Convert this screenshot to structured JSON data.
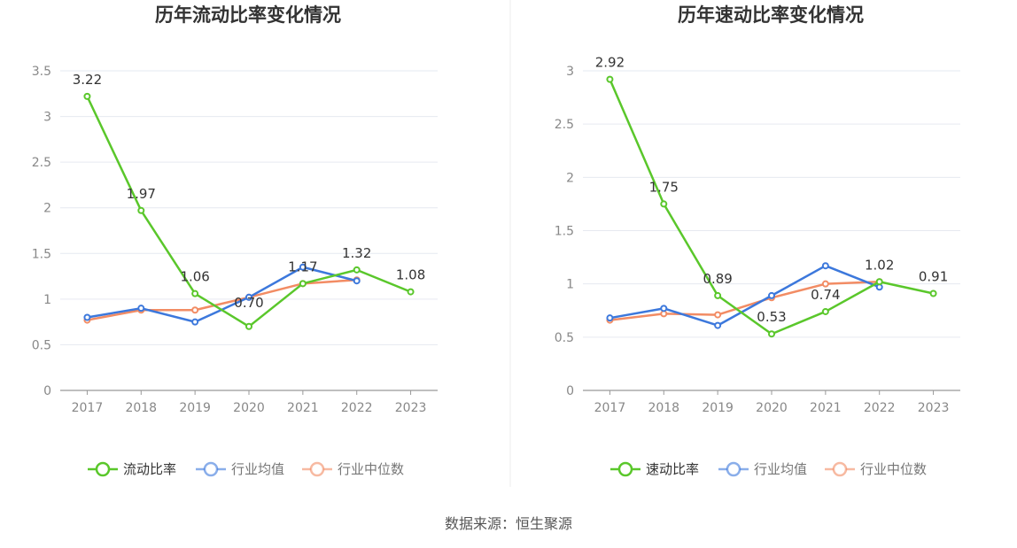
{
  "colors": {
    "primary": "#5ac72b",
    "industry_avg": "#3c78dc",
    "industry_median": "#f28c64",
    "grid": "#e6e9f0",
    "axis": "#999999",
    "label": "#333333",
    "tick": "#888888"
  },
  "chart_data": [
    {
      "type": "line",
      "title": "历年流动比率变化情况",
      "categories": [
        "2017",
        "2018",
        "2019",
        "2020",
        "2021",
        "2022",
        "2023"
      ],
      "y_ticks": [
        "0",
        "0.5",
        "1",
        "1.5",
        "2",
        "2.5",
        "3",
        "3.5"
      ],
      "ylim": [
        0,
        3.5
      ],
      "grid": true,
      "legend_position": "bottom",
      "series": [
        {
          "name": "流动比率",
          "color": "#5ac72b",
          "values": [
            3.22,
            1.97,
            1.06,
            0.7,
            1.17,
            1.32,
            1.08
          ],
          "labels": [
            "3.22",
            "1.97",
            "1.06",
            "0.70",
            "1.17",
            "1.32",
            "1.08"
          ]
        },
        {
          "name": "行业均值",
          "color": "#3c78dc",
          "values": [
            0.8,
            0.9,
            0.75,
            1.02,
            1.35,
            1.2,
            null
          ]
        },
        {
          "name": "行业中位数",
          "color": "#f28c64",
          "values": [
            0.77,
            0.88,
            0.88,
            1.02,
            1.17,
            1.21,
            null
          ]
        }
      ]
    },
    {
      "type": "line",
      "title": "历年速动比率变化情况",
      "categories": [
        "2017",
        "2018",
        "2019",
        "2020",
        "2021",
        "2022",
        "2023"
      ],
      "y_ticks": [
        "0",
        "0.5",
        "1",
        "1.5",
        "2",
        "2.5",
        "3"
      ],
      "ylim": [
        0,
        3
      ],
      "grid": true,
      "legend_position": "bottom",
      "series": [
        {
          "name": "速动比率",
          "color": "#5ac72b",
          "values": [
            2.92,
            1.75,
            0.89,
            0.53,
            0.74,
            1.02,
            0.91
          ],
          "labels": [
            "2.92",
            "1.75",
            "0.89",
            "0.53",
            "0.74",
            "1.02",
            "0.91"
          ]
        },
        {
          "name": "行业均值",
          "color": "#3c78dc",
          "values": [
            0.68,
            0.77,
            0.61,
            0.89,
            1.17,
            0.97,
            null
          ]
        },
        {
          "name": "行业中位数",
          "color": "#f28c64",
          "values": [
            0.66,
            0.72,
            0.71,
            0.87,
            1.0,
            1.02,
            null
          ]
        }
      ]
    }
  ],
  "footer": {
    "source_text": "数据来源：恒生聚源"
  }
}
